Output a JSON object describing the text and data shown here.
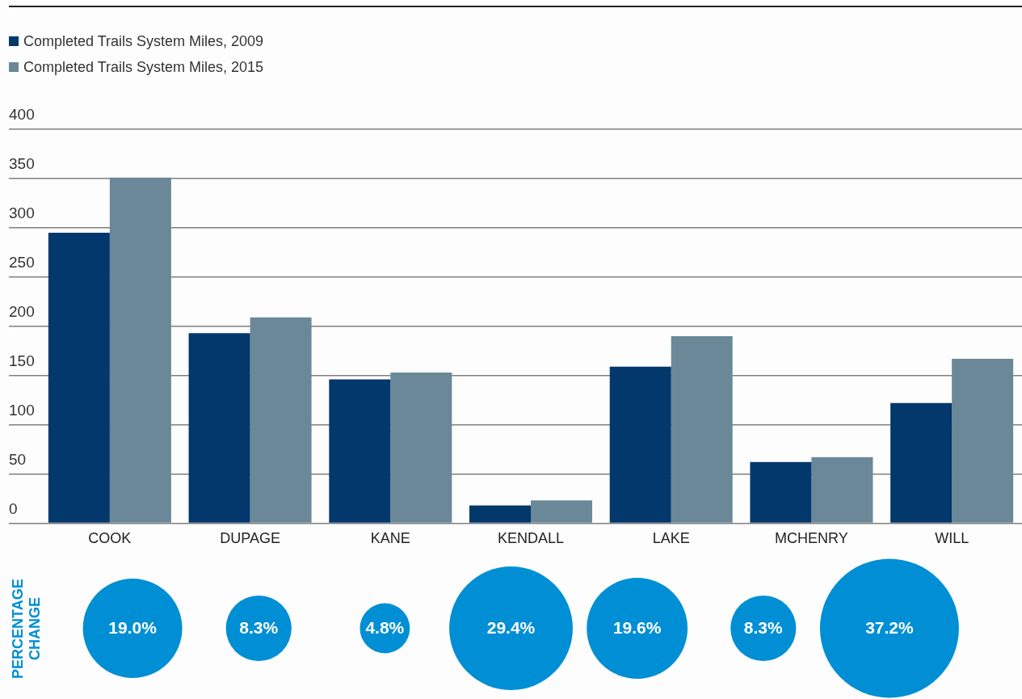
{
  "chart_data": [
    {
      "type": "bar",
      "categories": [
        "COOK",
        "DUPAGE",
        "KANE",
        "KENDALL",
        "LAKE",
        "MCHENRY",
        "WILL"
      ],
      "series": [
        {
          "name": "Completed Trails System Miles, 2009",
          "color": "#02386c",
          "values": [
            295,
            193,
            146,
            18,
            159,
            62,
            122
          ]
        },
        {
          "name": "Completed Trails System Miles, 2015",
          "color": "#6b8898",
          "values": [
            351,
            209,
            153,
            23,
            190,
            67,
            167
          ]
        }
      ],
      "ylim": [
        0,
        400
      ],
      "yticks": [
        0,
        50,
        100,
        150,
        200,
        250,
        300,
        350,
        400
      ],
      "grid": "y",
      "legend": "top left"
    },
    {
      "type": "other",
      "ylabel": "PERCENTAGE CHANGE",
      "values": [
        19.0,
        8.3,
        4.8,
        29.4,
        19.6,
        8.3,
        37.2
      ],
      "value_labels": [
        "19.0%",
        "8.3%",
        "4.8%",
        "29.4%",
        "19.6%",
        "8.3%",
        "37.2%"
      ],
      "color": "#008fd5"
    }
  ]
}
